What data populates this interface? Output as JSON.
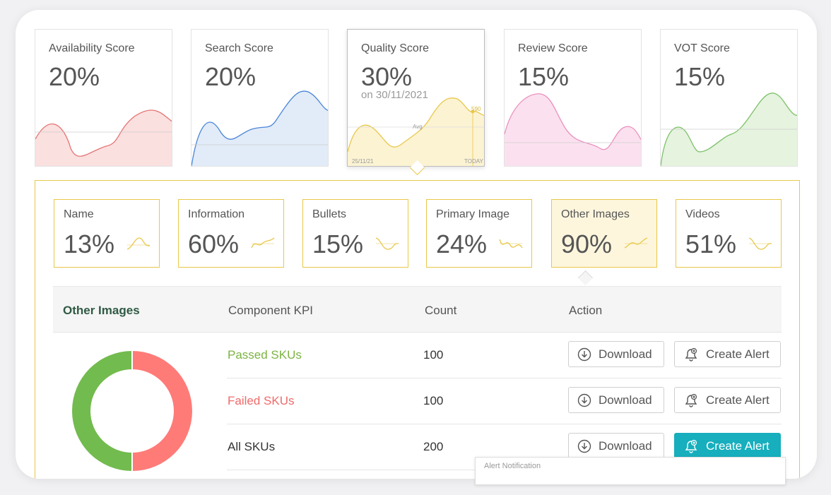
{
  "score_cards": [
    {
      "title": "Availability Score",
      "value": "20%",
      "color": "#e57373",
      "fill": "#fbe0e0"
    },
    {
      "title": "Search Score",
      "value": "20%",
      "color": "#4a86d9",
      "fill": "#e2ebf8"
    },
    {
      "title": "Quality Score",
      "value": "30%",
      "subtitle": "on 30/11/2021",
      "color": "#e8c84a",
      "fill": "#fcf3d3",
      "avg_label": "Avg",
      "peak_label": "590",
      "start_label": "25/11/21",
      "end_label": "TODAY"
    },
    {
      "title": "Review Score",
      "value": "15%",
      "color": "#ec8fbf",
      "fill": "#fbe1ef"
    },
    {
      "title": "VOT Score",
      "value": "15%",
      "color": "#7cc067",
      "fill": "#e5f3df"
    }
  ],
  "components": [
    {
      "title": "Name",
      "value": "13%"
    },
    {
      "title": "Information",
      "value": "60%"
    },
    {
      "title": "Bullets",
      "value": "15%"
    },
    {
      "title": "Primary Image",
      "value": "24%"
    },
    {
      "title": "Other Images",
      "value": "90%"
    },
    {
      "title": "Videos",
      "value": "51%"
    }
  ],
  "table": {
    "section": "Other Images",
    "headers": {
      "kpi": "Component KPI",
      "count": "Count",
      "action": "Action"
    },
    "rows": [
      {
        "label": "Passed SKUs",
        "count": "100",
        "color": "#7cb342"
      },
      {
        "label": "Failed SKUs",
        "count": "100",
        "color": "#f06a6a"
      },
      {
        "label": "All SKUs",
        "count": "200",
        "color": "#333333"
      }
    ],
    "download_label": "Download",
    "alert_label": "Create Alert"
  },
  "donut": {
    "passed": 100,
    "failed": 100,
    "passed_color": "#72bb4e",
    "failed_color": "#ff7b78"
  },
  "tooltip_text": "Alert Notification"
}
